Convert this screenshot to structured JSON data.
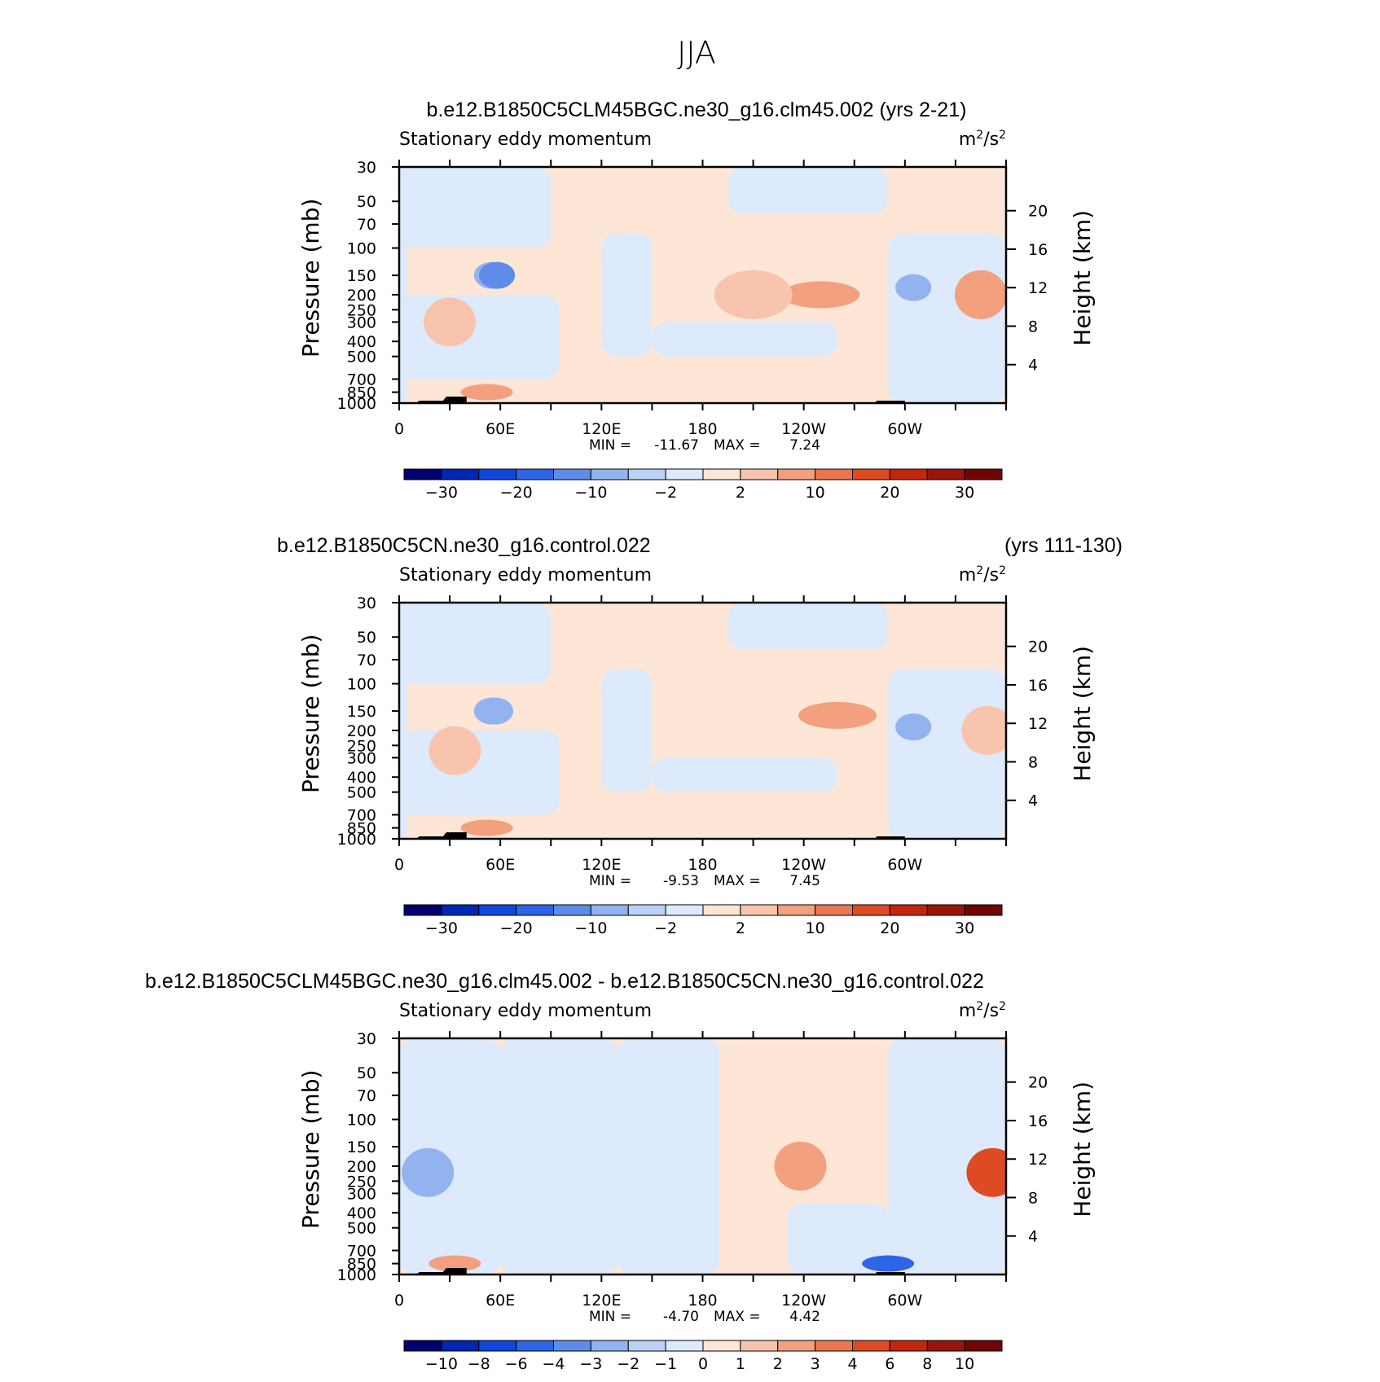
{
  "figure_title": "JJA",
  "chart_data": [
    {
      "type": "heatmap",
      "case_title": "b.e12.B1850C5CLM45BGC.ne30_g16.clm45.002 (yrs 2-21)",
      "case_title_right": "",
      "left_string": "Stationary eddy momentum",
      "units_base": "m",
      "units_exp_num": "2",
      "units_sep": "/s",
      "units_exp_den": "2",
      "ylabel": "Pressure (mb)",
      "y2label": "Height (km)",
      "x_ticks": [
        "0",
        "60E",
        "120E",
        "180",
        "120W",
        "60W"
      ],
      "x_tick_values": [
        0,
        60,
        120,
        180,
        240,
        300
      ],
      "xlim": [
        0,
        360
      ],
      "y_ticks": [
        "30",
        "50",
        "70",
        "100",
        "150",
        "200",
        "250",
        "300",
        "400",
        "500",
        "700",
        "850",
        "1000"
      ],
      "y_tick_values": [
        30,
        50,
        70,
        100,
        150,
        200,
        250,
        300,
        400,
        500,
        700,
        850,
        1000
      ],
      "ylim": [
        1000,
        30
      ],
      "height_ticks": [
        "20",
        "16",
        "12",
        "8",
        "4"
      ],
      "height_tick_values": [
        20,
        16,
        12,
        8,
        4
      ],
      "min_label": "MIN =",
      "min_value": "-11.67",
      "max_label": "MAX =",
      "max_value": "7.24",
      "colorbar_labels": [
        "−30",
        "−20",
        "−10",
        "−2",
        "2",
        "10",
        "20",
        "30"
      ],
      "colorbar_label_bins": [
        1,
        3,
        5,
        7,
        9,
        11,
        13,
        15
      ],
      "colorbar_colors": [
        "#00006e",
        "#0026b4",
        "#1046dc",
        "#2e64e6",
        "#5f8ce8",
        "#93b3f0",
        "#bcd1f6",
        "#ddeafb",
        "#fde6d6",
        "#f9c4ad",
        "#f3a07f",
        "#ec7552",
        "#de4a24",
        "#c3260e",
        "#991509",
        "#700505"
      ],
      "features": [
        {
          "lon": 55,
          "p": 150,
          "value": -8
        },
        {
          "lon": 58,
          "p": 150,
          "value": -11.67
        },
        {
          "lon": 305,
          "p": 180,
          "value": -7
        },
        {
          "lon": 345,
          "p": 200,
          "value": 5
        },
        {
          "lon": 250,
          "p": 200,
          "value": 7.24
        },
        {
          "lon": 210,
          "p": 200,
          "value": 4
        },
        {
          "lon": 52,
          "p": 850,
          "value": 6
        },
        {
          "lon": 30,
          "p": 300,
          "value": 3
        }
      ]
    },
    {
      "type": "heatmap",
      "case_title": "b.e12.B1850C5CN.ne30_g16.control.022",
      "case_title_right": "(yrs 111-130)",
      "left_string": "Stationary eddy momentum",
      "units_base": "m",
      "units_exp_num": "2",
      "units_sep": "/s",
      "units_exp_den": "2",
      "ylabel": "Pressure (mb)",
      "y2label": "Height (km)",
      "x_ticks": [
        "0",
        "60E",
        "120E",
        "180",
        "120W",
        "60W"
      ],
      "x_tick_values": [
        0,
        60,
        120,
        180,
        240,
        300
      ],
      "xlim": [
        0,
        360
      ],
      "y_ticks": [
        "30",
        "50",
        "70",
        "100",
        "150",
        "200",
        "250",
        "300",
        "400",
        "500",
        "700",
        "850",
        "1000"
      ],
      "y_tick_values": [
        30,
        50,
        70,
        100,
        150,
        200,
        250,
        300,
        400,
        500,
        700,
        850,
        1000
      ],
      "ylim": [
        1000,
        30
      ],
      "height_ticks": [
        "20",
        "16",
        "12",
        "8",
        "4"
      ],
      "height_tick_values": [
        20,
        16,
        12,
        8,
        4
      ],
      "min_label": "MIN =",
      "min_value": "-9.53",
      "max_label": "MAX =",
      "max_value": "7.45",
      "colorbar_labels": [
        "−30",
        "−20",
        "−10",
        "−2",
        "2",
        "10",
        "20",
        "30"
      ],
      "colorbar_label_bins": [
        1,
        3,
        5,
        7,
        9,
        11,
        13,
        15
      ],
      "colorbar_colors": [
        "#00006e",
        "#0026b4",
        "#1046dc",
        "#2e64e6",
        "#5f8ce8",
        "#93b3f0",
        "#bcd1f6",
        "#ddeafb",
        "#fde6d6",
        "#f9c4ad",
        "#f3a07f",
        "#ec7552",
        "#de4a24",
        "#c3260e",
        "#991509",
        "#700505"
      ],
      "features": [
        {
          "lon": 55,
          "p": 150,
          "value": -8
        },
        {
          "lon": 57,
          "p": 150,
          "value": -9.53
        },
        {
          "lon": 305,
          "p": 190,
          "value": -7
        },
        {
          "lon": 260,
          "p": 160,
          "value": 7.45
        },
        {
          "lon": 52,
          "p": 850,
          "value": 6
        },
        {
          "lon": 33,
          "p": 270,
          "value": 3
        },
        {
          "lon": 349,
          "p": 200,
          "value": 4
        }
      ]
    },
    {
      "type": "heatmap",
      "case_title": "b.e12.B1850C5CLM45BGC.ne30_g16.clm45.002 - b.e12.B1850C5CN.ne30_g16.control.022",
      "case_title_right": "",
      "left_string": "Stationary eddy momentum",
      "units_base": "m",
      "units_exp_num": "2",
      "units_sep": "/s",
      "units_exp_den": "2",
      "ylabel": "Pressure (mb)",
      "y2label": "Height (km)",
      "x_ticks": [
        "0",
        "60E",
        "120E",
        "180",
        "120W",
        "60W"
      ],
      "x_tick_values": [
        0,
        60,
        120,
        180,
        240,
        300
      ],
      "xlim": [
        0,
        360
      ],
      "y_ticks": [
        "30",
        "50",
        "70",
        "100",
        "150",
        "200",
        "250",
        "300",
        "400",
        "500",
        "700",
        "850",
        "1000"
      ],
      "y_tick_values": [
        30,
        50,
        70,
        100,
        150,
        200,
        250,
        300,
        400,
        500,
        700,
        850,
        1000
      ],
      "ylim": [
        1000,
        30
      ],
      "height_ticks": [
        "20",
        "16",
        "12",
        "8",
        "4"
      ],
      "height_tick_values": [
        20,
        16,
        12,
        8,
        4
      ],
      "min_label": "MIN =",
      "min_value": "-4.70",
      "max_label": "MAX =",
      "max_value": "4.42",
      "colorbar_labels": [
        "−10",
        "−8",
        "−6",
        "−4",
        "−3",
        "−2",
        "−1",
        "0",
        "1",
        "2",
        "3",
        "4",
        "6",
        "8",
        "10"
      ],
      "colorbar_label_bins": [
        1,
        2,
        3,
        4,
        5,
        6,
        7,
        8,
        9,
        10,
        11,
        12,
        13,
        14,
        15
      ],
      "colorbar_colors": [
        "#00006e",
        "#0026b4",
        "#1046dc",
        "#2e64e6",
        "#5f8ce8",
        "#93b3f0",
        "#bcd1f6",
        "#ddeafb",
        "#fde6d6",
        "#f9c4ad",
        "#f3a07f",
        "#ec7552",
        "#de4a24",
        "#c3260e",
        "#991509",
        "#700505"
      ],
      "features": [
        {
          "lon": 17,
          "p": 220,
          "value": -3
        },
        {
          "lon": 238,
          "p": 200,
          "value": 2.5
        },
        {
          "lon": 352,
          "p": 220,
          "value": 4.42
        },
        {
          "lon": 33,
          "p": 850,
          "value": 2
        },
        {
          "lon": 290,
          "p": 850,
          "value": -4.7
        }
      ]
    }
  ]
}
